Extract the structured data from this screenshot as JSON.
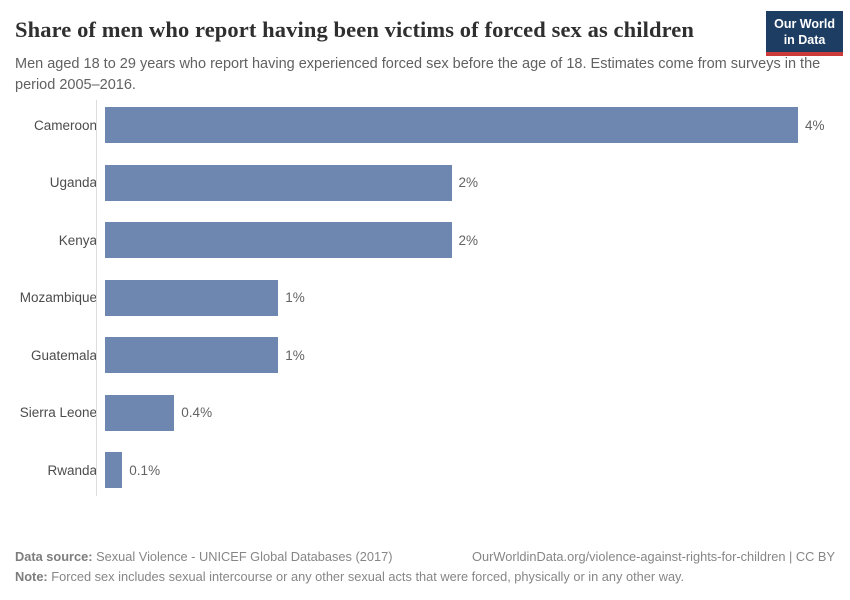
{
  "header": {
    "title": "Share of men who report having been victims of forced sex as children",
    "subtitle": "Men aged 18 to 29 years who report having experienced forced sex before the age of 18. Estimates come from surveys in the period 2005–2016.",
    "logo": {
      "line1": "Our World",
      "line2": "in Data"
    }
  },
  "chart_data": {
    "type": "bar",
    "orientation": "horizontal",
    "title": "Share of men who report having been victims of forced sex as children",
    "categories": [
      "Cameroon",
      "Uganda",
      "Kenya",
      "Mozambique",
      "Guatemala",
      "Sierra Leone",
      "Rwanda"
    ],
    "values": [
      4,
      2,
      2,
      1,
      1,
      0.4,
      0.1
    ],
    "value_labels": [
      "4%",
      "2%",
      "2%",
      "1%",
      "1%",
      "0.4%",
      "0.1%"
    ],
    "xlim": [
      0,
      4
    ],
    "unit": "%",
    "grid": false,
    "legend": "none",
    "bar_color": "#6d87b1",
    "axis_color": "#dcdcdc"
  },
  "footer": {
    "data_source_label": "Data source:",
    "data_source_text": " Sexual Violence - UNICEF Global Databases (2017)",
    "attribution": "OurWorldinData.org/violence-against-rights-for-children | CC BY",
    "note_label": "Note:",
    "note_text": " Forced sex includes sexual intercourse or any other sexual acts that were forced, physically or in any other way."
  },
  "colors": {
    "logo_bg": "#1d3d63",
    "logo_underline": "#cc3b3a",
    "bar": "#6d87b1"
  }
}
